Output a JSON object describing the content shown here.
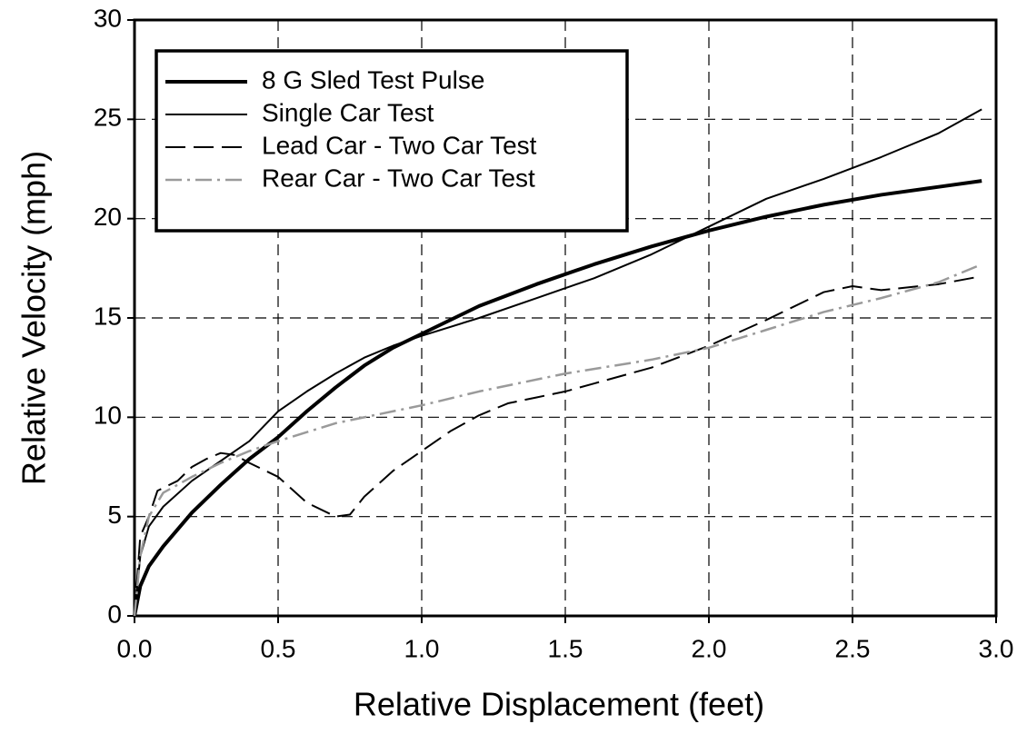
{
  "chart_data": {
    "type": "line",
    "xlabel": "Relative Displacement (feet)",
    "ylabel": "Relative Velocity (mph)",
    "xlim": [
      0,
      3
    ],
    "ylim": [
      0,
      30
    ],
    "xticks": [
      {
        "value": 0,
        "label": "0.0"
      },
      0.5,
      {
        "value": 1,
        "label": "1.0"
      },
      1.5,
      {
        "value": 2,
        "label": "2.0"
      },
      2.5,
      {
        "value": 3,
        "label": "3.0"
      }
    ],
    "yticks": [
      0,
      5,
      10,
      15,
      20,
      25,
      30
    ],
    "grid": true,
    "legend": "upper left",
    "series": [
      {
        "name": "8 G Sled Test Pulse",
        "color": "#000000",
        "width": 4,
        "dash": "solid",
        "x": [
          0,
          0.02,
          0.05,
          0.1,
          0.2,
          0.3,
          0.4,
          0.5,
          0.6,
          0.7,
          0.8,
          0.9,
          1.0,
          1.2,
          1.4,
          1.6,
          1.8,
          2.0,
          2.2,
          2.4,
          2.6,
          2.8,
          2.95
        ],
        "values": [
          0,
          1.5,
          2.5,
          3.5,
          5.2,
          6.6,
          7.9,
          9,
          10.3,
          11.5,
          12.6,
          13.5,
          14.2,
          15.6,
          16.7,
          17.7,
          18.6,
          19.4,
          20.1,
          20.7,
          21.2,
          21.6,
          21.9
        ]
      },
      {
        "name": "Single Car Test",
        "color": "#000000",
        "width": 2,
        "dash": "solid",
        "x": [
          0,
          0.02,
          0.05,
          0.1,
          0.2,
          0.3,
          0.4,
          0.5,
          0.6,
          0.7,
          0.8,
          0.9,
          1.0,
          1.2,
          1.4,
          1.6,
          1.8,
          2.0,
          2.2,
          2.4,
          2.6,
          2.8,
          2.95
        ],
        "values": [
          0,
          3,
          4.5,
          5.5,
          6.8,
          7.8,
          8.8,
          10.3,
          11.3,
          12.2,
          13.0,
          13.6,
          14.1,
          15.0,
          16.0,
          17.0,
          18.2,
          19.6,
          21.0,
          22.0,
          23.1,
          24.3,
          25.5
        ]
      },
      {
        "name": "Lead Car - Two Car Test",
        "color": "#000000",
        "width": 2,
        "dash": "dashed",
        "x": [
          0,
          0.02,
          0.05,
          0.08,
          0.15,
          0.2,
          0.25,
          0.3,
          0.35,
          0.4,
          0.5,
          0.6,
          0.7,
          0.75,
          0.8,
          0.9,
          1.0,
          1.1,
          1.2,
          1.3,
          1.4,
          1.5,
          1.6,
          1.8,
          2.0,
          2.2,
          2.4,
          2.5,
          2.6,
          2.8,
          2.95
        ],
        "values": [
          0,
          4,
          5,
          6.3,
          6.8,
          7.5,
          7.9,
          8.2,
          8.1,
          7.7,
          7.0,
          5.7,
          5.0,
          5.1,
          6.0,
          7.3,
          8.3,
          9.3,
          10.1,
          10.7,
          11.0,
          11.3,
          11.7,
          12.5,
          13.6,
          14.9,
          16.3,
          16.6,
          16.4,
          16.7,
          17.1
        ]
      },
      {
        "name": "Rear Car - Two Car Test",
        "color": "#9a9a9a",
        "width": 2.5,
        "dash": "dashdot",
        "x": [
          0,
          0.02,
          0.05,
          0.1,
          0.2,
          0.3,
          0.4,
          0.5,
          0.7,
          1.0,
          1.2,
          1.5,
          1.8,
          2.0,
          2.2,
          2.4,
          2.6,
          2.8,
          2.95
        ],
        "values": [
          0,
          3,
          5,
          6.2,
          7,
          7.7,
          8.3,
          8.8,
          9.7,
          10.6,
          11.3,
          12.2,
          12.9,
          13.5,
          14.4,
          15.3,
          16.0,
          16.8,
          17.7
        ]
      }
    ]
  }
}
